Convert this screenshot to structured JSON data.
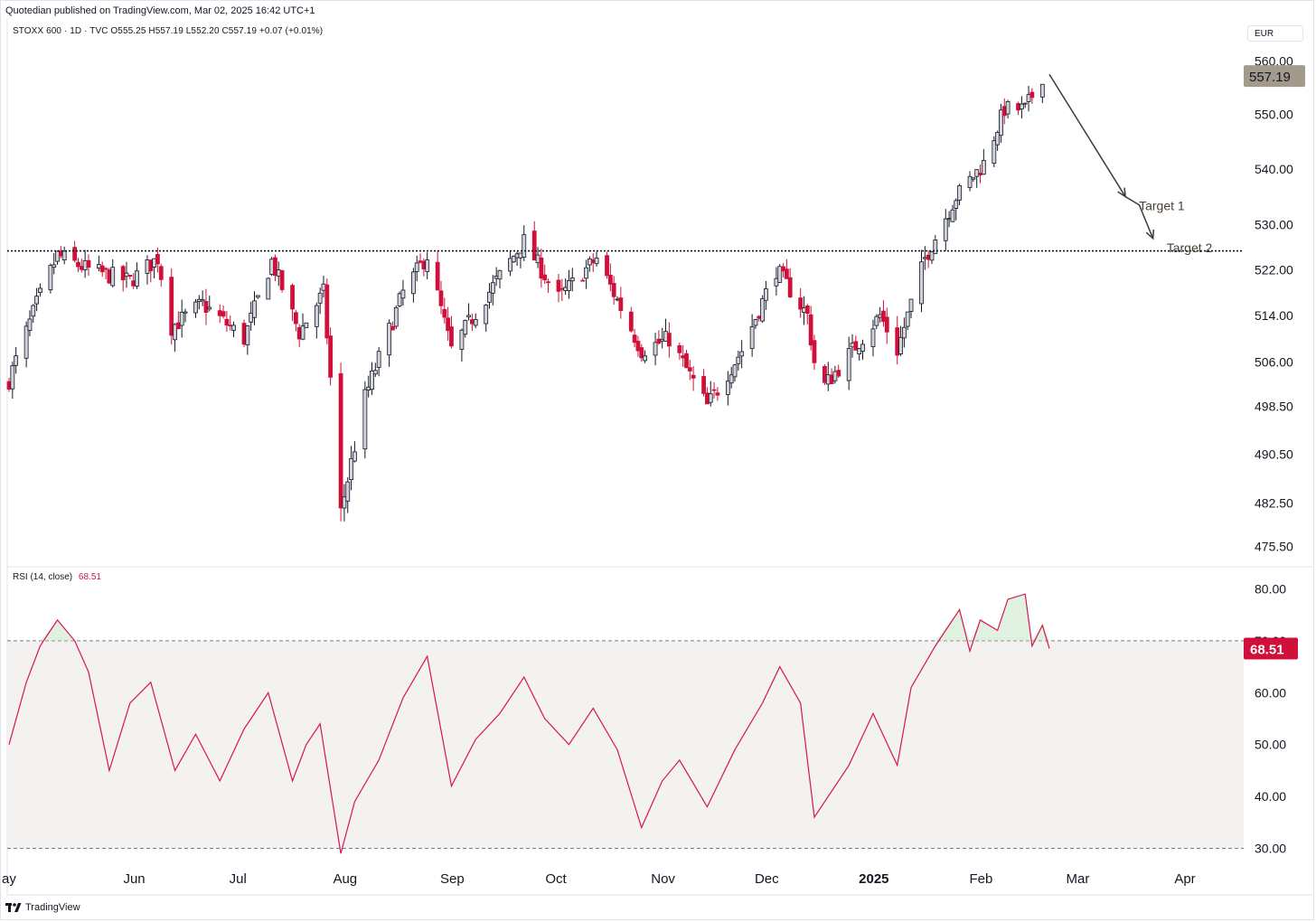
{
  "header": {
    "published_by": "Quotedian published on TradingView.com, Mar 02, 2025 16:42 UTC+1"
  },
  "legend": {
    "symbol_line": "STOXX 600 · 1D · TVC  O555.25  H557.19  L552.20  C557.19  +0.07 (+0.01%)",
    "currency": "EUR"
  },
  "rsi_legend": {
    "label": "RSI (14, close)",
    "value": "68.51"
  },
  "footer": {
    "brand": "TradingView"
  },
  "colors": {
    "up_candle": "#d1d4dc",
    "down_candle": "#d0103a",
    "candle_outline": "#131722",
    "rsi_line": "#d6164e",
    "rsi_band_fill": "#f3f2f1",
    "last_price_badge": "#a39a8c",
    "rsi_badge": "#d0103a",
    "arrow": "#3b3b3b"
  },
  "chart_data": [
    {
      "type": "candlestick",
      "title": "STOXX 600",
      "x_axis_labels": [
        "ay",
        "Jun",
        "Jul",
        "Aug",
        "Sep",
        "Oct",
        "Nov",
        "Dec",
        "2025",
        "Feb",
        "Mar",
        "Apr"
      ],
      "y_axis_labels": [
        "560.00",
        "550.00",
        "540.00",
        "530.00",
        "522.00",
        "514.00",
        "506.00",
        "498.50",
        "490.50",
        "482.50",
        "475.50"
      ],
      "y_axis_scale": "log",
      "ylim": [
        473,
        563
      ],
      "last_price": 557.19,
      "last_price_label": "557.19",
      "resistance_level": 525.3,
      "annotations": [
        {
          "label": "Target 1",
          "price": 535
        },
        {
          "label": "Target 2",
          "price": 527.5
        }
      ],
      "close_anchor_points": [
        {
          "date": "2024-05-01",
          "close": 503
        },
        {
          "date": "2024-05-09",
          "close": 516
        },
        {
          "date": "2024-05-15",
          "close": 524.5
        },
        {
          "date": "2024-05-24",
          "close": 522
        },
        {
          "date": "2024-06-05",
          "close": 520
        },
        {
          "date": "2024-06-13",
          "close": 524
        },
        {
          "date": "2024-06-17",
          "close": 512
        },
        {
          "date": "2024-06-26",
          "close": 516
        },
        {
          "date": "2024-07-08",
          "close": 510
        },
        {
          "date": "2024-07-16",
          "close": 523.5
        },
        {
          "date": "2024-07-24",
          "close": 511
        },
        {
          "date": "2024-07-31",
          "close": 518
        },
        {
          "date": "2024-08-05",
          "close": 481
        },
        {
          "date": "2024-08-12",
          "close": 500
        },
        {
          "date": "2024-08-23",
          "close": 518
        },
        {
          "date": "2024-08-30",
          "close": 524.5
        },
        {
          "date": "2024-09-06",
          "close": 508
        },
        {
          "date": "2024-09-19",
          "close": 520
        },
        {
          "date": "2024-09-27",
          "close": 527
        },
        {
          "date": "2024-10-07",
          "close": 517
        },
        {
          "date": "2024-10-18",
          "close": 524
        },
        {
          "date": "2024-10-31",
          "close": 508
        },
        {
          "date": "2024-11-08",
          "close": 510
        },
        {
          "date": "2024-11-19",
          "close": 498.5
        },
        {
          "date": "2024-11-29",
          "close": 508
        },
        {
          "date": "2024-12-09",
          "close": 522
        },
        {
          "date": "2024-12-18",
          "close": 514
        },
        {
          "date": "2024-12-20",
          "close": 506
        },
        {
          "date": "2024-12-23",
          "close": 502
        },
        {
          "date": "2025-01-08",
          "close": 514
        },
        {
          "date": "2025-01-13",
          "close": 508
        },
        {
          "date": "2025-01-21",
          "close": 524
        },
        {
          "date": "2025-01-30",
          "close": 535
        },
        {
          "date": "2025-02-07",
          "close": 541
        },
        {
          "date": "2025-02-13",
          "close": 551
        },
        {
          "date": "2025-02-19",
          "close": 551
        },
        {
          "date": "2025-02-24",
          "close": 557.19
        }
      ],
      "projection_path": [
        {
          "date": "2025-02-26",
          "price": 557.5
        },
        {
          "date": "2025-03-20",
          "price": 535
        },
        {
          "date": "2025-03-24",
          "price": 533.5
        },
        {
          "date": "2025-03-28",
          "price": 527.5
        }
      ]
    },
    {
      "type": "line",
      "title": "RSI (14, close)",
      "x_axis_labels": [
        "ay",
        "Jun",
        "Jul",
        "Aug",
        "Sep",
        "Oct",
        "Nov",
        "Dec",
        "2025",
        "Feb",
        "Mar",
        "Apr"
      ],
      "y_axis_labels": [
        "80.00",
        "70.00",
        "60.00",
        "50.00",
        "40.00",
        "30.00"
      ],
      "ylim": [
        28,
        82
      ],
      "overbought": 70,
      "oversold": 30,
      "last_value": 68.51,
      "last_value_label": "68.51",
      "series": [
        {
          "name": "RSI",
          "points": [
            {
              "date": "2024-05-01",
              "value": 50
            },
            {
              "date": "2024-05-06",
              "value": 62
            },
            {
              "date": "2024-05-10",
              "value": 69
            },
            {
              "date": "2024-05-15",
              "value": 74
            },
            {
              "date": "2024-05-20",
              "value": 70
            },
            {
              "date": "2024-05-24",
              "value": 64
            },
            {
              "date": "2024-05-30",
              "value": 45
            },
            {
              "date": "2024-06-05",
              "value": 58
            },
            {
              "date": "2024-06-11",
              "value": 62
            },
            {
              "date": "2024-06-18",
              "value": 45
            },
            {
              "date": "2024-06-24",
              "value": 52
            },
            {
              "date": "2024-07-01",
              "value": 43
            },
            {
              "date": "2024-07-08",
              "value": 53
            },
            {
              "date": "2024-07-15",
              "value": 60
            },
            {
              "date": "2024-07-22",
              "value": 43
            },
            {
              "date": "2024-07-26",
              "value": 50
            },
            {
              "date": "2024-07-30",
              "value": 54
            },
            {
              "date": "2024-08-05",
              "value": 29
            },
            {
              "date": "2024-08-09",
              "value": 39
            },
            {
              "date": "2024-08-16",
              "value": 47
            },
            {
              "date": "2024-08-23",
              "value": 59
            },
            {
              "date": "2024-08-30",
              "value": 67
            },
            {
              "date": "2024-09-06",
              "value": 42
            },
            {
              "date": "2024-09-13",
              "value": 51
            },
            {
              "date": "2024-09-20",
              "value": 56
            },
            {
              "date": "2024-09-27",
              "value": 63
            },
            {
              "date": "2024-10-03",
              "value": 55
            },
            {
              "date": "2024-10-10",
              "value": 50
            },
            {
              "date": "2024-10-17",
              "value": 57
            },
            {
              "date": "2024-10-24",
              "value": 49
            },
            {
              "date": "2024-10-31",
              "value": 34
            },
            {
              "date": "2024-11-06",
              "value": 43
            },
            {
              "date": "2024-11-11",
              "value": 47
            },
            {
              "date": "2024-11-19",
              "value": 38
            },
            {
              "date": "2024-11-27",
              "value": 49
            },
            {
              "date": "2024-12-05",
              "value": 58
            },
            {
              "date": "2024-12-10",
              "value": 65
            },
            {
              "date": "2024-12-16",
              "value": 58
            },
            {
              "date": "2024-12-20",
              "value": 36
            },
            {
              "date": "2024-12-30",
              "value": 46
            },
            {
              "date": "2025-01-06",
              "value": 56
            },
            {
              "date": "2025-01-13",
              "value": 46
            },
            {
              "date": "2025-01-17",
              "value": 61
            },
            {
              "date": "2025-01-24",
              "value": 69
            },
            {
              "date": "2025-01-31",
              "value": 76
            },
            {
              "date": "2025-02-03",
              "value": 68
            },
            {
              "date": "2025-02-06",
              "value": 74
            },
            {
              "date": "2025-02-11",
              "value": 72
            },
            {
              "date": "2025-02-14",
              "value": 78
            },
            {
              "date": "2025-02-19",
              "value": 79
            },
            {
              "date": "2025-02-21",
              "value": 69
            },
            {
              "date": "2025-02-24",
              "value": 73
            },
            {
              "date": "2025-02-26",
              "value": 68.51
            }
          ]
        }
      ]
    }
  ]
}
